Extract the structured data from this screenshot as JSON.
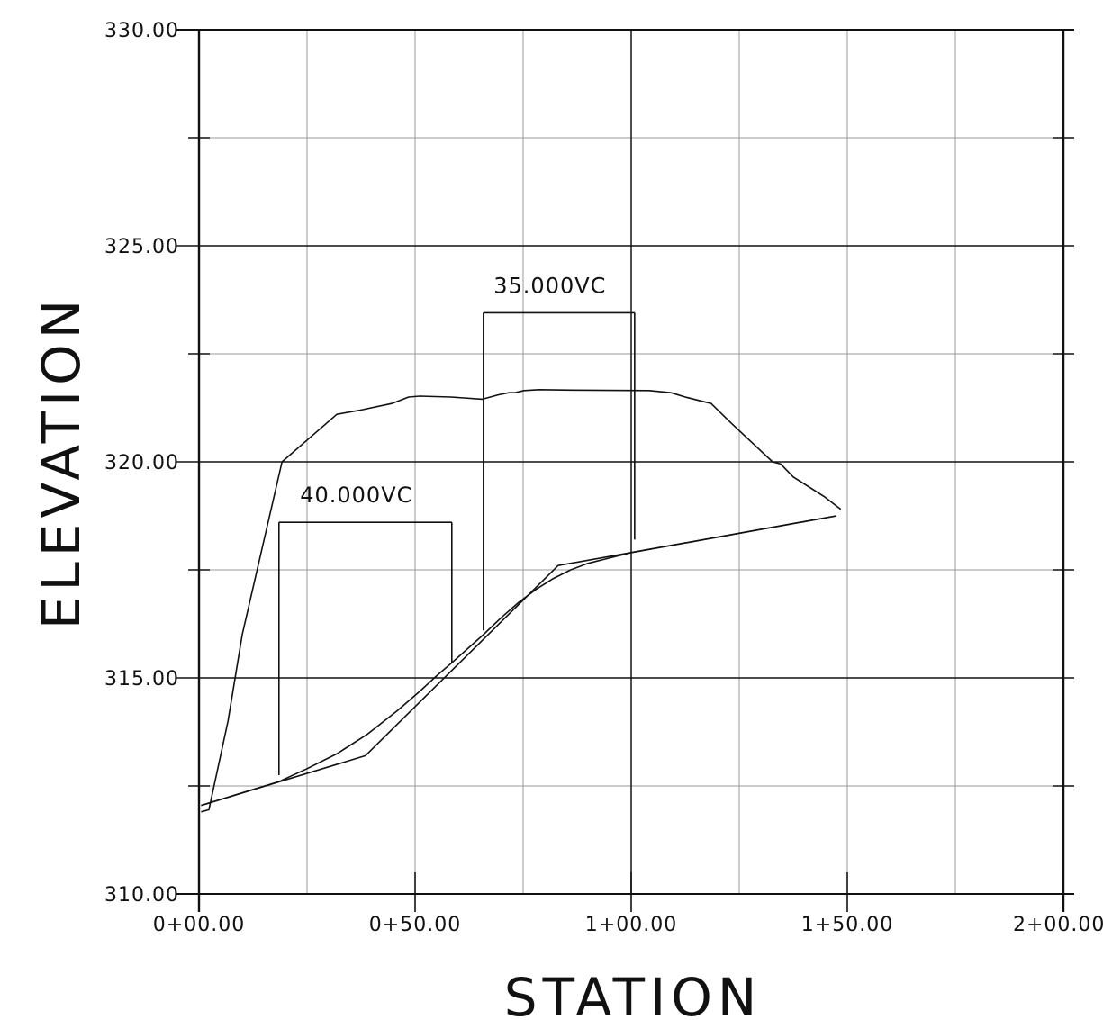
{
  "chart_data": {
    "type": "line",
    "xlabel": "STATION",
    "ylabel": "ELEVATION",
    "xlim": [
      0,
      200
    ],
    "ylim": [
      310,
      330
    ],
    "x_ticks": [
      0,
      50,
      100,
      150,
      200
    ],
    "x_tick_labels": [
      "0+00.00",
      "0+50.00",
      "1+00.00",
      "1+50.00",
      "2+00.00"
    ],
    "y_ticks": [
      310,
      315,
      320,
      325,
      330
    ],
    "y_tick_labels": [
      "310.00",
      "315.00",
      "320.00",
      "325.00",
      "330.00"
    ],
    "grid": true,
    "series": [
      {
        "style": "existing-ground",
        "x": [
          0.5,
          2.3,
          6.7,
          10.0,
          14.6,
          19.2,
          31.9,
          37.5,
          44.6,
          48.5,
          51.1,
          58.3,
          65.6,
          69.2,
          71.7,
          73.1,
          75.2,
          78.7,
          86.3,
          104.2,
          109.2,
          112.5,
          118.5,
          123.1,
          132.7,
          134.6,
          137.5,
          144.6,
          148.5
        ],
        "y": [
          311.9,
          311.95,
          314.0,
          316.0,
          318.0,
          320.0,
          321.1,
          321.2,
          321.35,
          321.5,
          321.52,
          321.5,
          321.45,
          321.55,
          321.6,
          321.6,
          321.65,
          321.67,
          321.66,
          321.65,
          321.6,
          321.5,
          321.35,
          320.9,
          320.0,
          319.95,
          319.65,
          319.2,
          318.9
        ]
      },
      {
        "style": "pvi-tangents",
        "x": [
          0.5,
          38.5,
          83.1,
          100.0,
          147.5
        ],
        "y": [
          312.05,
          313.2,
          317.6,
          317.9,
          318.75
        ]
      },
      {
        "style": "vertical-curves",
        "x": [
          0.5,
          18.5,
          25.0,
          32.0,
          39.0,
          46.0,
          51.2,
          55.0,
          58.5,
          65.8,
          70.0,
          74.0,
          78.0,
          82.0,
          86.0,
          90.0,
          94.0,
          100.0,
          147.5
        ],
        "y": [
          312.05,
          312.6,
          312.9,
          313.25,
          313.7,
          314.25,
          314.7,
          315.05,
          315.35,
          316.0,
          316.4,
          316.75,
          317.05,
          317.3,
          317.5,
          317.65,
          317.75,
          317.9,
          318.75
        ]
      }
    ],
    "vertical_curves": [
      {
        "label": "40.000VC",
        "start": 18.5,
        "end": 58.5,
        "bracket_elev": 318.6,
        "start_drop": 312.75,
        "end_drop": 315.35
      },
      {
        "label": "35.000VC",
        "start": 65.8,
        "end": 100.8,
        "bracket_elev": 323.45,
        "start_drop": 316.1,
        "end_drop": 318.2
      }
    ]
  }
}
